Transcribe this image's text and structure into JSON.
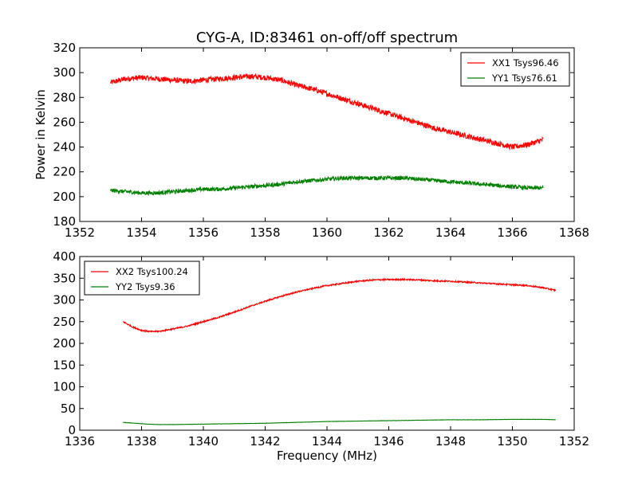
{
  "title": "CYG-A, ID:83461 on-off/off spectrum",
  "colors": {
    "red": "#ff0000",
    "green": "#008000",
    "axes": "#000000"
  },
  "chart_data": [
    {
      "type": "line",
      "xlabel": "",
      "ylabel": "Power in Kelvin",
      "xlim": [
        1352,
        1368
      ],
      "ylim": [
        180,
        320
      ],
      "xticks": [
        1352,
        1354,
        1356,
        1358,
        1360,
        1362,
        1364,
        1366,
        1368
      ],
      "yticks": [
        180,
        200,
        220,
        240,
        260,
        280,
        300,
        320
      ],
      "grid": false,
      "legend_position": "top-right",
      "series": [
        {
          "name": "XX1 Tsys96.46",
          "color": "#ff0000",
          "noise": 2.2,
          "x": [
            1353.0,
            1353.5,
            1354.0,
            1354.5,
            1355.0,
            1355.5,
            1356.0,
            1356.5,
            1357.0,
            1357.5,
            1358.0,
            1358.5,
            1359.0,
            1359.5,
            1360.0,
            1360.5,
            1361.0,
            1361.5,
            1362.0,
            1362.5,
            1363.0,
            1363.5,
            1364.0,
            1364.5,
            1365.0,
            1365.5,
            1366.0,
            1366.5,
            1367.0
          ],
          "y": [
            292,
            295,
            296,
            295,
            294,
            293,
            294,
            295,
            296,
            297,
            296,
            294,
            290,
            287,
            283,
            279,
            275,
            271,
            267,
            263,
            259,
            255,
            252,
            249,
            246,
            243,
            240,
            242,
            246
          ]
        },
        {
          "name": "YY1 Tsys76.61",
          "color": "#008000",
          "noise": 1.6,
          "x": [
            1353.0,
            1353.5,
            1354.0,
            1354.5,
            1355.0,
            1355.5,
            1356.0,
            1356.5,
            1357.0,
            1357.5,
            1358.0,
            1358.5,
            1359.0,
            1359.5,
            1360.0,
            1360.5,
            1361.0,
            1361.5,
            1362.0,
            1362.5,
            1363.0,
            1363.5,
            1364.0,
            1364.5,
            1365.0,
            1365.5,
            1366.0,
            1366.5,
            1367.0
          ],
          "y": [
            205,
            204,
            203,
            203,
            204,
            205,
            206,
            206,
            207,
            208,
            209,
            210,
            212,
            213,
            214,
            215,
            215,
            215,
            215,
            215,
            214,
            213,
            212,
            211,
            210,
            209,
            208,
            207,
            207
          ]
        }
      ]
    },
    {
      "type": "line",
      "xlabel": "Frequency (MHz)",
      "ylabel": "",
      "xlim": [
        1336,
        1352
      ],
      "ylim": [
        0,
        400
      ],
      "xticks": [
        1336,
        1338,
        1340,
        1342,
        1344,
        1346,
        1348,
        1350,
        1352
      ],
      "yticks": [
        0,
        50,
        100,
        150,
        200,
        250,
        300,
        350,
        400
      ],
      "grid": false,
      "legend_position": "top-left",
      "series": [
        {
          "name": "XX2 Tsys100.24",
          "color": "#ff0000",
          "noise": 1.5,
          "x": [
            1337.4,
            1337.7,
            1338.0,
            1338.3,
            1338.6,
            1339.0,
            1339.5,
            1340.0,
            1340.5,
            1341.0,
            1341.5,
            1342.0,
            1342.5,
            1343.0,
            1343.5,
            1344.0,
            1344.5,
            1345.0,
            1345.5,
            1346.0,
            1346.5,
            1347.0,
            1347.5,
            1348.0,
            1348.5,
            1349.0,
            1349.5,
            1350.0,
            1350.5,
            1351.0,
            1351.4
          ],
          "y": [
            250,
            238,
            230,
            227,
            228,
            233,
            240,
            250,
            260,
            272,
            285,
            297,
            308,
            318,
            326,
            333,
            338,
            343,
            346,
            347,
            347,
            346,
            344,
            343,
            341,
            339,
            337,
            335,
            333,
            328,
            322
          ]
        },
        {
          "name": "YY2 Tsys9.36",
          "color": "#008000",
          "noise": 0.3,
          "x": [
            1337.4,
            1337.8,
            1338.2,
            1338.6,
            1339.0,
            1340.0,
            1341.0,
            1342.0,
            1343.0,
            1344.0,
            1345.0,
            1346.0,
            1347.0,
            1348.0,
            1349.0,
            1350.0,
            1350.5,
            1351.0,
            1351.4
          ],
          "y": [
            18,
            16,
            14,
            13,
            13,
            14,
            15,
            16,
            18,
            20,
            21,
            22,
            23,
            24,
            24,
            25,
            25,
            25,
            24
          ]
        }
      ]
    }
  ]
}
